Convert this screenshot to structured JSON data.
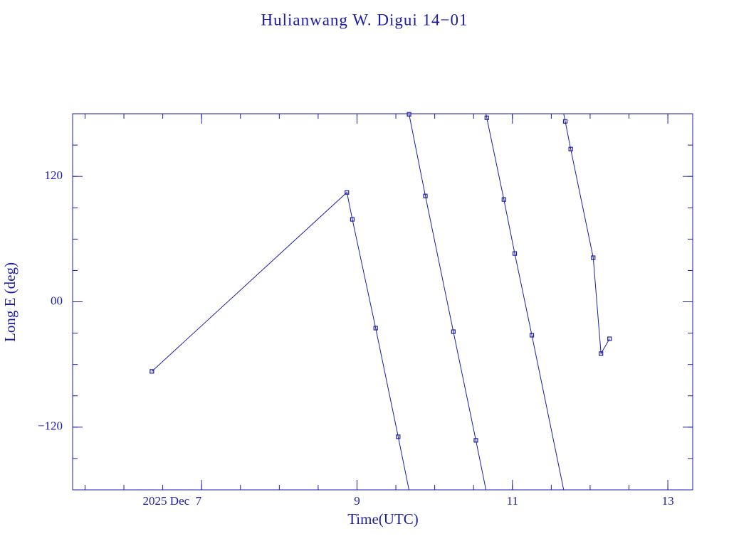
{
  "chart_data": {
    "type": "line",
    "title": "Hulianwang W. Digui 14−01",
    "x_label": "Time(UTC)",
    "y_label": "Long E (deg)",
    "color": "#1c1ca8",
    "x": [
      6.36,
      8.87,
      8.94,
      9.24,
      9.53,
      9.67,
      9.88,
      10.24,
      10.53,
      10.67,
      10.89,
      11.03,
      11.25,
      11.68,
      11.75,
      12.04,
      12.14,
      12.25
    ],
    "values": [
      -66.6,
      104.7,
      78.9,
      -25.2,
      -129.2,
      179.5,
      101.3,
      -28.6,
      -132.6,
      176.1,
      97.9,
      46.2,
      -32.0,
      172.7,
      146.2,
      42.2,
      -49.6,
      -35.4
    ],
    "xlim": [
      5.34,
      13.32
    ],
    "xticks": [
      {
        "value": 7,
        "label": "2025 Dec  7"
      },
      9,
      11,
      13
    ],
    "ylim": [
      -180,
      180
    ],
    "yticks": [
      {
        "value": -120,
        "label": "−120"
      },
      {
        "value": 0,
        "label": "00"
      },
      120
    ]
  }
}
